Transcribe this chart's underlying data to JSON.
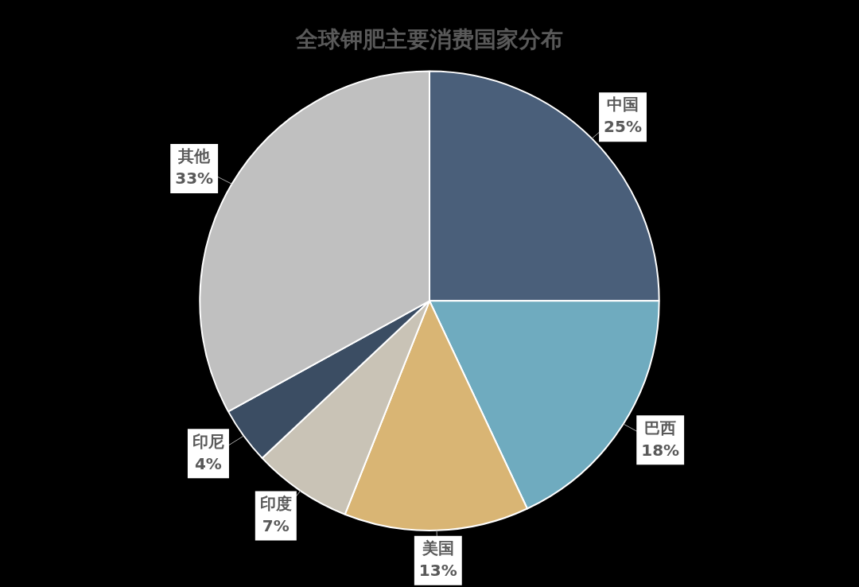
{
  "chart_data": {
    "type": "pie",
    "title": "全球钾肥主要消费国家分布",
    "categories": [
      "中国",
      "巴西",
      "美国",
      "印度",
      "印尼",
      "其他"
    ],
    "values": [
      25,
      18,
      13,
      7,
      4,
      33
    ],
    "value_labels": [
      "25%",
      "18%",
      "13%",
      "7%",
      "4%",
      "33%"
    ],
    "colors": [
      "#4a5f7a",
      "#6fabbf",
      "#d9b574",
      "#c9c3b6",
      "#3b4d63",
      "#c0c0c0"
    ],
    "legend": false
  }
}
